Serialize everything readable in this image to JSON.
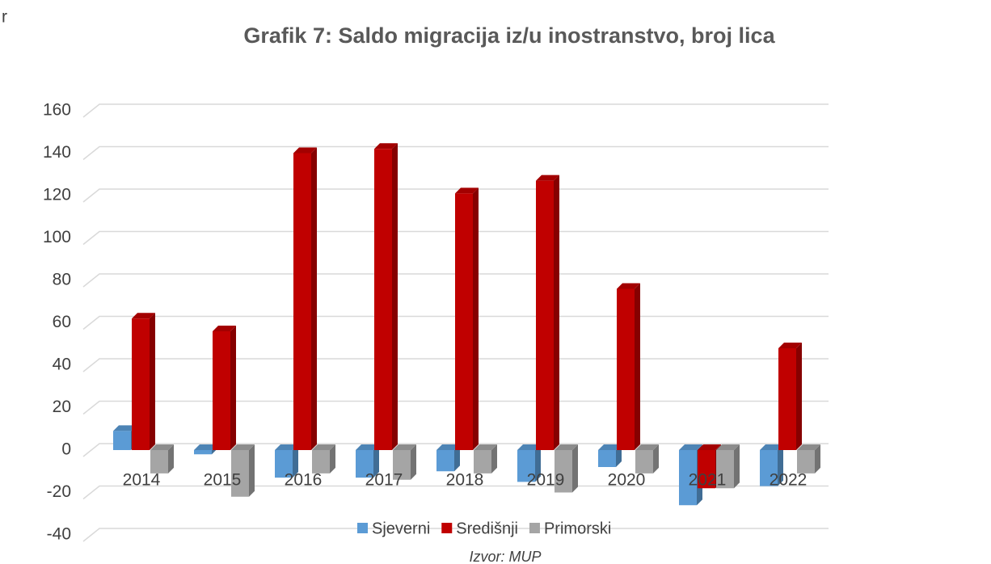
{
  "fragment": "r",
  "chart_data": {
    "type": "bar",
    "title": "Grafik 7: Saldo migracija iz/u inostranstvo, broj lica",
    "categories": [
      "2014",
      "2015",
      "2016",
      "2017",
      "2018",
      "2019",
      "2020",
      "2021",
      "2022"
    ],
    "series": [
      {
        "name": "Sjeverni",
        "color": "#5b9bd5",
        "values": [
          9,
          -2,
          -13,
          -13,
          -10,
          -15,
          -8,
          -26,
          -17
        ]
      },
      {
        "name": "Središnji",
        "color": "#c00000",
        "values": [
          62,
          56,
          140,
          142,
          121,
          127,
          76,
          -18,
          48
        ]
      },
      {
        "name": "Primorski",
        "color": "#a5a5a5",
        "values": [
          -11,
          -22,
          -11,
          -14,
          -11,
          -20,
          -11,
          -18,
          -11
        ]
      }
    ],
    "ylim": [
      -40,
      160
    ],
    "yticks": [
      -40,
      -20,
      0,
      20,
      40,
      60,
      80,
      100,
      120,
      140,
      160
    ],
    "grid": true,
    "legend": "bottom",
    "source": "Izvor: MUP"
  }
}
